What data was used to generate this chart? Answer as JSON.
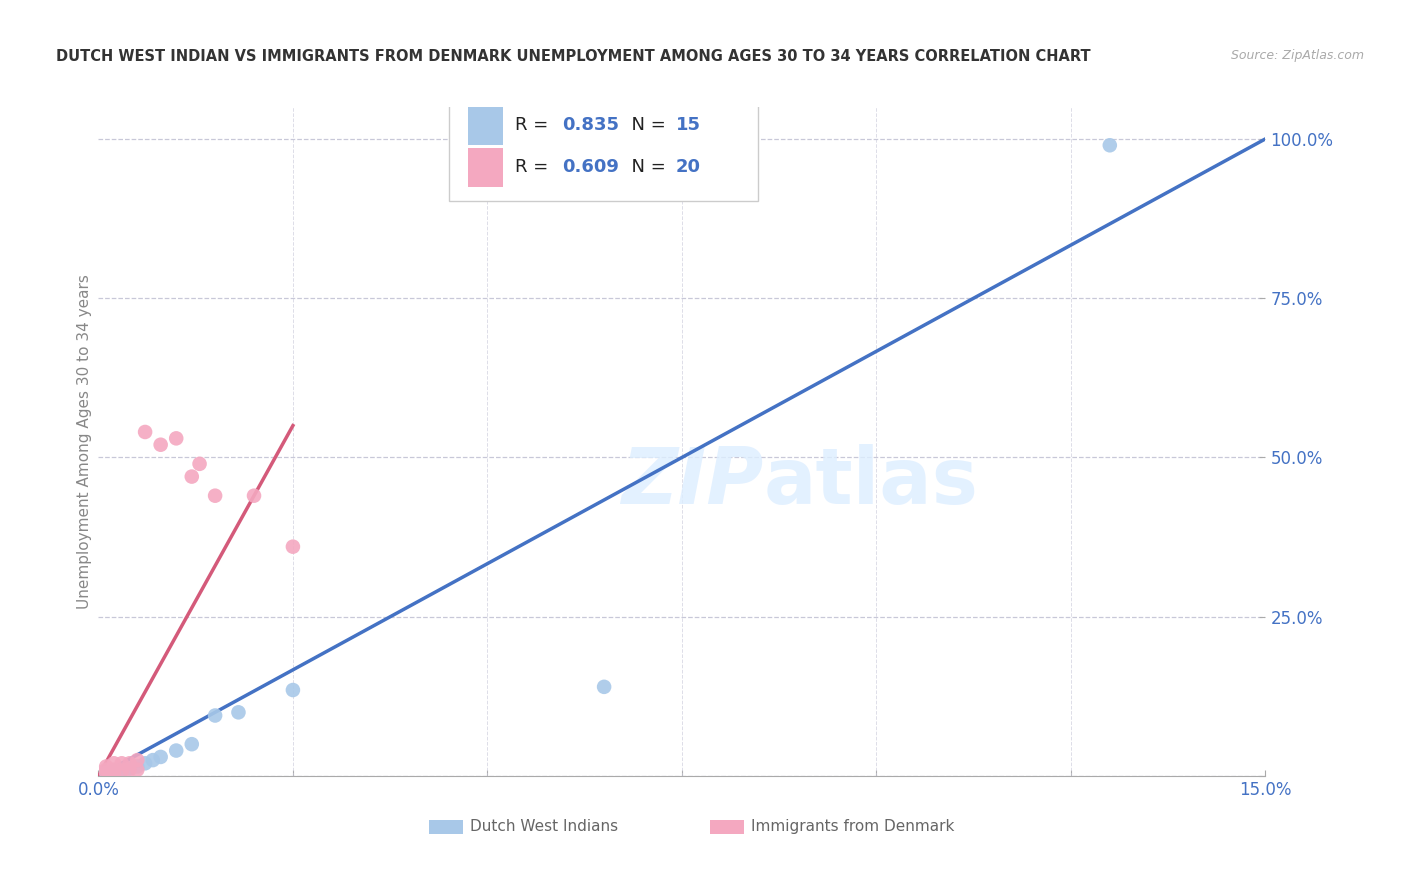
{
  "title": "DUTCH WEST INDIAN VS IMMIGRANTS FROM DENMARK UNEMPLOYMENT AMONG AGES 30 TO 34 YEARS CORRELATION CHART",
  "source": "Source: ZipAtlas.com",
  "ylabel": "Unemployment Among Ages 30 to 34 years",
  "xlim": [
    0.0,
    0.15
  ],
  "ylim": [
    0.0,
    1.05
  ],
  "x_ticks": [
    0.0,
    0.025,
    0.05,
    0.075,
    0.1,
    0.125,
    0.15
  ],
  "x_tick_labels": [
    "0.0%",
    "",
    "",
    "",
    "",
    "",
    "15.0%"
  ],
  "y_ticks": [
    0.0,
    0.25,
    0.5,
    0.75,
    1.0
  ],
  "y_tick_labels": [
    "",
    "25.0%",
    "50.0%",
    "75.0%",
    "100.0%"
  ],
  "blue_scatter": [
    [
      0.001,
      0.005
    ],
    [
      0.002,
      0.008
    ],
    [
      0.003,
      0.01
    ],
    [
      0.004,
      0.012
    ],
    [
      0.005,
      0.015
    ],
    [
      0.006,
      0.02
    ],
    [
      0.007,
      0.025
    ],
    [
      0.008,
      0.03
    ],
    [
      0.01,
      0.04
    ],
    [
      0.012,
      0.05
    ],
    [
      0.015,
      0.095
    ],
    [
      0.018,
      0.1
    ],
    [
      0.025,
      0.135
    ],
    [
      0.065,
      0.14
    ],
    [
      0.13,
      0.99
    ]
  ],
  "pink_scatter": [
    [
      0.001,
      0.005
    ],
    [
      0.001,
      0.01
    ],
    [
      0.001,
      0.015
    ],
    [
      0.002,
      0.005
    ],
    [
      0.002,
      0.01
    ],
    [
      0.002,
      0.02
    ],
    [
      0.003,
      0.008
    ],
    [
      0.003,
      0.02
    ],
    [
      0.004,
      0.01
    ],
    [
      0.004,
      0.02
    ],
    [
      0.005,
      0.01
    ],
    [
      0.005,
      0.025
    ],
    [
      0.006,
      0.54
    ],
    [
      0.008,
      0.52
    ],
    [
      0.01,
      0.53
    ],
    [
      0.012,
      0.47
    ],
    [
      0.013,
      0.49
    ],
    [
      0.015,
      0.44
    ],
    [
      0.02,
      0.44
    ],
    [
      0.025,
      0.36
    ]
  ],
  "blue_line_x": [
    0.0,
    0.15
  ],
  "blue_line_y": [
    0.0,
    1.0
  ],
  "pink_line_x": [
    0.0,
    0.025
  ],
  "pink_line_y": [
    0.0,
    0.55
  ],
  "dashed_line_x": [
    0.0,
    0.15
  ],
  "dashed_line_y": [
    0.0,
    1.0
  ],
  "blue_color": "#a8c8e8",
  "pink_color": "#f4a8c0",
  "blue_line_color": "#4472c4",
  "pink_line_color": "#d45a7a",
  "dashed_line_color": "#c8b8b8",
  "legend_bottom_blue": "Dutch West Indians",
  "legend_bottom_pink": "Immigrants from Denmark",
  "R_blue": "0.835",
  "N_blue": "15",
  "R_pink": "0.609",
  "N_pink": "20",
  "watermark": "ZIPatlas",
  "background_color": "#ffffff",
  "grid_color": "#c8c8d8",
  "tick_color": "#4472c4",
  "value_color": "#4472c4"
}
